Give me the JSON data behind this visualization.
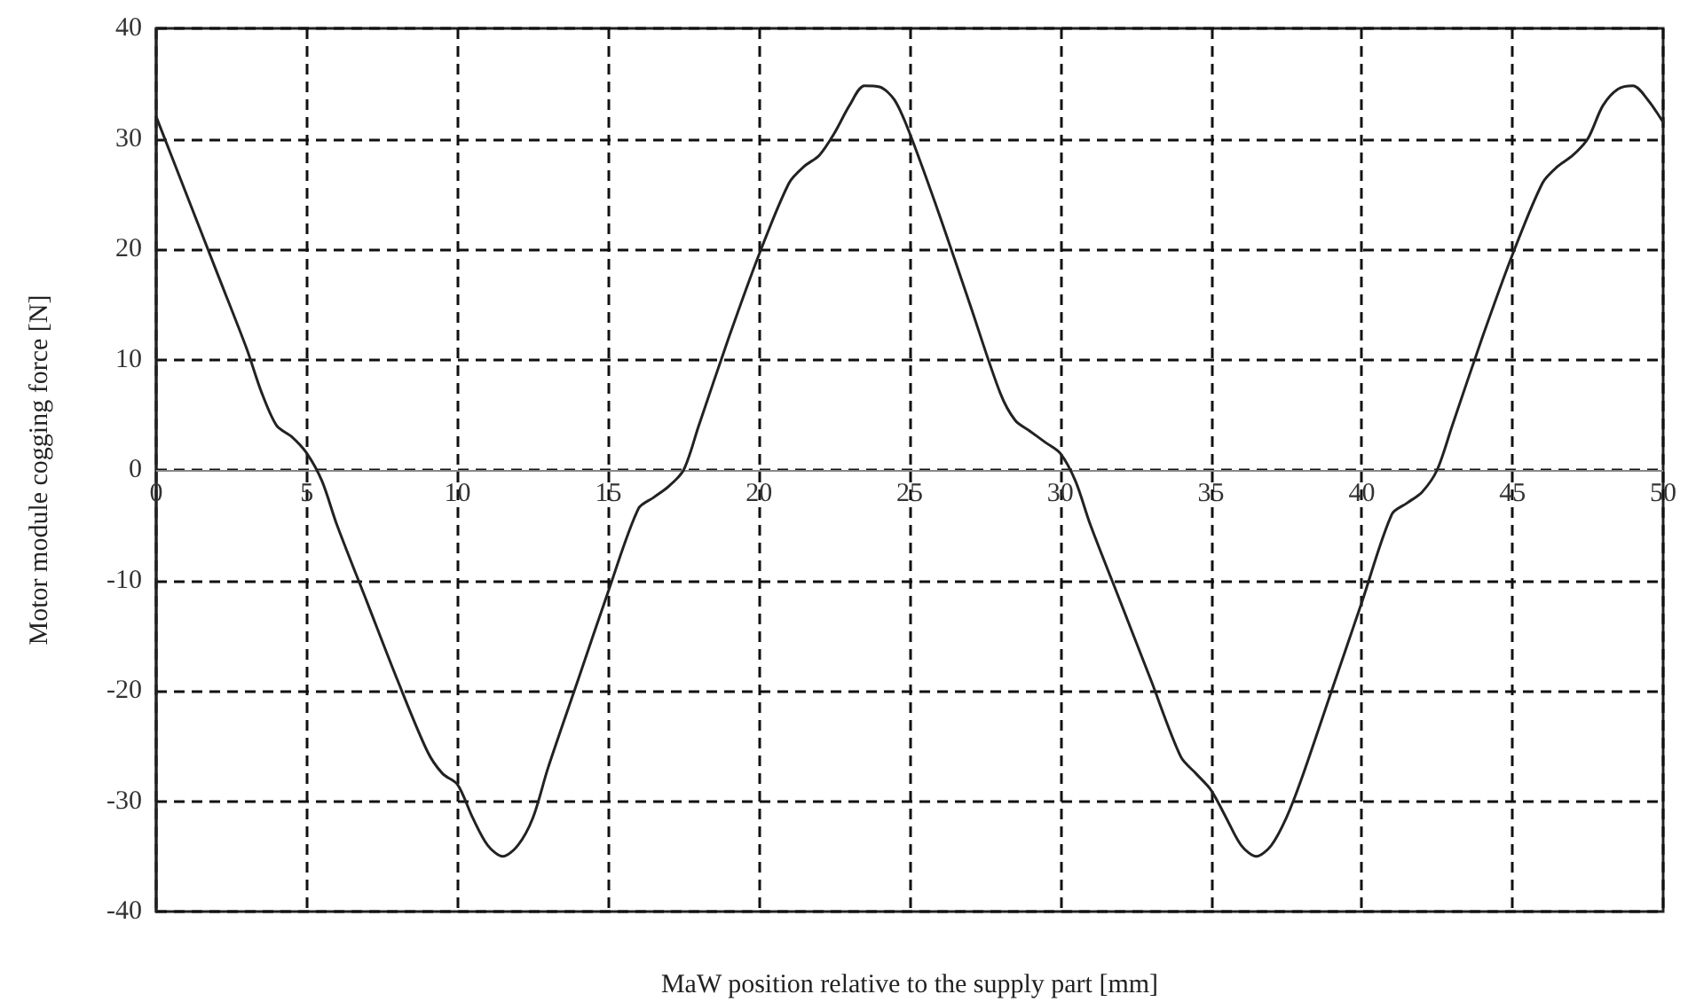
{
  "chart_data": {
    "type": "line",
    "xlabel": "MaW position relative to the supply part [mm]",
    "ylabel": "Motor module cogging force [N]",
    "xlim": [
      0,
      50
    ],
    "xticks": [
      0,
      5,
      10,
      15,
      20,
      25,
      30,
      35,
      40,
      45,
      50
    ],
    "ylim": [
      -40,
      40
    ],
    "yticks": [
      -40,
      -30,
      -20,
      -10,
      0,
      10,
      20,
      30,
      40
    ],
    "grid": true,
    "marker": "none",
    "line_style": "solid",
    "series": [
      {
        "color": "#222222",
        "x": [
          0,
          1,
          2,
          3,
          3.5,
          4,
          4.5,
          5,
          5.5,
          6,
          7,
          8,
          9,
          9.5,
          10,
          10.5,
          11,
          11.5,
          12,
          12.5,
          13,
          14,
          15,
          16,
          16.5,
          17,
          17.5,
          18,
          19,
          20,
          21,
          21.5,
          22,
          22.5,
          23,
          23.5,
          24,
          24.5,
          25,
          26,
          27,
          28,
          28.5,
          29,
          29.5,
          30,
          30.5,
          31,
          32,
          33,
          34,
          34.5,
          35,
          35.5,
          36,
          36.5,
          37,
          37.5,
          38,
          39,
          40,
          41,
          41.5,
          42,
          42.5,
          43,
          44,
          45,
          46,
          46.5,
          47,
          47.5,
          48,
          48.5,
          49,
          49.5,
          50
        ],
        "values": [
          32,
          25,
          18,
          11,
          7,
          4,
          3,
          1.5,
          -1,
          -5,
          -12,
          -19,
          -25.5,
          -27.5,
          -28.5,
          -31.5,
          -34,
          -35,
          -34,
          -31.5,
          -27,
          -19,
          -11,
          -3.5,
          -2.5,
          -1.5,
          0,
          4,
          12,
          19.5,
          26,
          27.5,
          28.5,
          30.5,
          33,
          34.8,
          34.7,
          33.5,
          30.5,
          23,
          15,
          7,
          4.5,
          3.5,
          2.5,
          1.5,
          -1,
          -5,
          -12,
          -19,
          -26,
          -27.5,
          -29,
          -31.5,
          -34,
          -35,
          -34,
          -31.5,
          -28,
          -20,
          -12,
          -4,
          -3,
          -2,
          0,
          4,
          12,
          19.5,
          26,
          27.5,
          28.5,
          30,
          33,
          34.5,
          34.8,
          33.5,
          31.5
        ]
      }
    ]
  }
}
